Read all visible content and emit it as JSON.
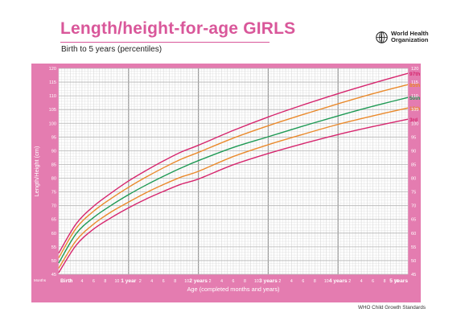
{
  "header": {
    "title": "Length/height-for-age GIRLS",
    "subtitle": "Birth to 5 years (percentiles)",
    "org_line1": "World Health",
    "org_line2": "Organization"
  },
  "footer": {
    "source": "WHO Child Growth Standards"
  },
  "colors": {
    "frame": "#e47cb0",
    "grid_minor": "#d8d8d8",
    "grid_major": "#9a9a9a",
    "p3": "#d6266e",
    "p15": "#ea8a2c",
    "p50": "#1f9a55",
    "p85": "#ea8a2c",
    "p97": "#d6266e"
  },
  "chart_data": {
    "type": "line",
    "title": "Length/height-for-age GIRLS",
    "subtitle": "Birth to 5 years (percentiles)",
    "xlabel": "Age (completed months and years)",
    "ylabel": "Length/Height (cm)",
    "xlim": [
      0,
      60
    ],
    "ylim": [
      45,
      120
    ],
    "x_months_label": "Months",
    "x_tick_labels": [
      {
        "x": 0,
        "label": "Birth"
      },
      {
        "x": 2,
        "label": "2"
      },
      {
        "x": 4,
        "label": "4"
      },
      {
        "x": 6,
        "label": "6"
      },
      {
        "x": 8,
        "label": "8"
      },
      {
        "x": 10,
        "label": "10"
      },
      {
        "x": 12,
        "label": "1 year"
      },
      {
        "x": 14,
        "label": "2"
      },
      {
        "x": 16,
        "label": "4"
      },
      {
        "x": 18,
        "label": "6"
      },
      {
        "x": 20,
        "label": "8"
      },
      {
        "x": 22,
        "label": "10"
      },
      {
        "x": 24,
        "label": "2 years"
      },
      {
        "x": 26,
        "label": "2"
      },
      {
        "x": 28,
        "label": "4"
      },
      {
        "x": 30,
        "label": "6"
      },
      {
        "x": 32,
        "label": "8"
      },
      {
        "x": 34,
        "label": "10"
      },
      {
        "x": 36,
        "label": "3 years"
      },
      {
        "x": 38,
        "label": "2"
      },
      {
        "x": 40,
        "label": "4"
      },
      {
        "x": 42,
        "label": "6"
      },
      {
        "x": 44,
        "label": "8"
      },
      {
        "x": 46,
        "label": "10"
      },
      {
        "x": 48,
        "label": "4 years"
      },
      {
        "x": 50,
        "label": "2"
      },
      {
        "x": 52,
        "label": "4"
      },
      {
        "x": 54,
        "label": "6"
      },
      {
        "x": 56,
        "label": "8"
      },
      {
        "x": 58,
        "label": "10"
      },
      {
        "x": 60,
        "label": "5 years"
      }
    ],
    "y_ticks": [
      45,
      50,
      55,
      60,
      65,
      70,
      75,
      80,
      85,
      90,
      95,
      100,
      105,
      110,
      115,
      120
    ],
    "x_major": [
      12,
      24,
      36,
      48
    ],
    "grid": true,
    "series": [
      {
        "name": "3rd",
        "color_key": "p3",
        "x": [
          0,
          3,
          6,
          9,
          12,
          15,
          18,
          21,
          24,
          30,
          36,
          42,
          48,
          54,
          60
        ],
        "values": [
          45.6,
          55.6,
          61.5,
          65.6,
          69.2,
          72.4,
          75.2,
          77.8,
          79.7,
          84.9,
          89.0,
          92.6,
          95.9,
          98.8,
          101.5
        ]
      },
      {
        "name": "15th",
        "color_key": "p15",
        "x": [
          0,
          3,
          6,
          9,
          12,
          15,
          18,
          21,
          24,
          30,
          36,
          42,
          48,
          54,
          60
        ],
        "values": [
          47.2,
          57.3,
          63.3,
          67.7,
          71.3,
          74.7,
          77.7,
          80.4,
          82.5,
          87.9,
          92.2,
          96.0,
          99.6,
          102.7,
          105.6
        ]
      },
      {
        "name": "50th",
        "color_key": "p50",
        "x": [
          0,
          3,
          6,
          9,
          12,
          15,
          18,
          21,
          24,
          30,
          36,
          42,
          48,
          54,
          60
        ],
        "values": [
          49.1,
          59.8,
          65.7,
          70.1,
          74.0,
          77.5,
          80.7,
          83.7,
          86.4,
          91.2,
          95.1,
          99.0,
          102.7,
          106.2,
          109.4
        ]
      },
      {
        "name": "85th",
        "color_key": "p85",
        "x": [
          0,
          3,
          6,
          9,
          12,
          15,
          18,
          21,
          24,
          30,
          36,
          42,
          48,
          54,
          60
        ],
        "values": [
          51.0,
          61.8,
          68.0,
          72.6,
          76.7,
          80.4,
          83.8,
          86.9,
          89.4,
          94.6,
          99.1,
          103.2,
          107.1,
          110.8,
          114.1
        ]
      },
      {
        "name": "97th",
        "color_key": "p97",
        "x": [
          0,
          3,
          6,
          9,
          12,
          15,
          18,
          21,
          24,
          30,
          36,
          42,
          48,
          54,
          60
        ],
        "values": [
          52.7,
          63.4,
          69.8,
          74.6,
          79.0,
          82.8,
          86.3,
          89.5,
          92.0,
          97.4,
          102.3,
          106.7,
          110.8,
          114.6,
          118.2
        ]
      }
    ]
  }
}
